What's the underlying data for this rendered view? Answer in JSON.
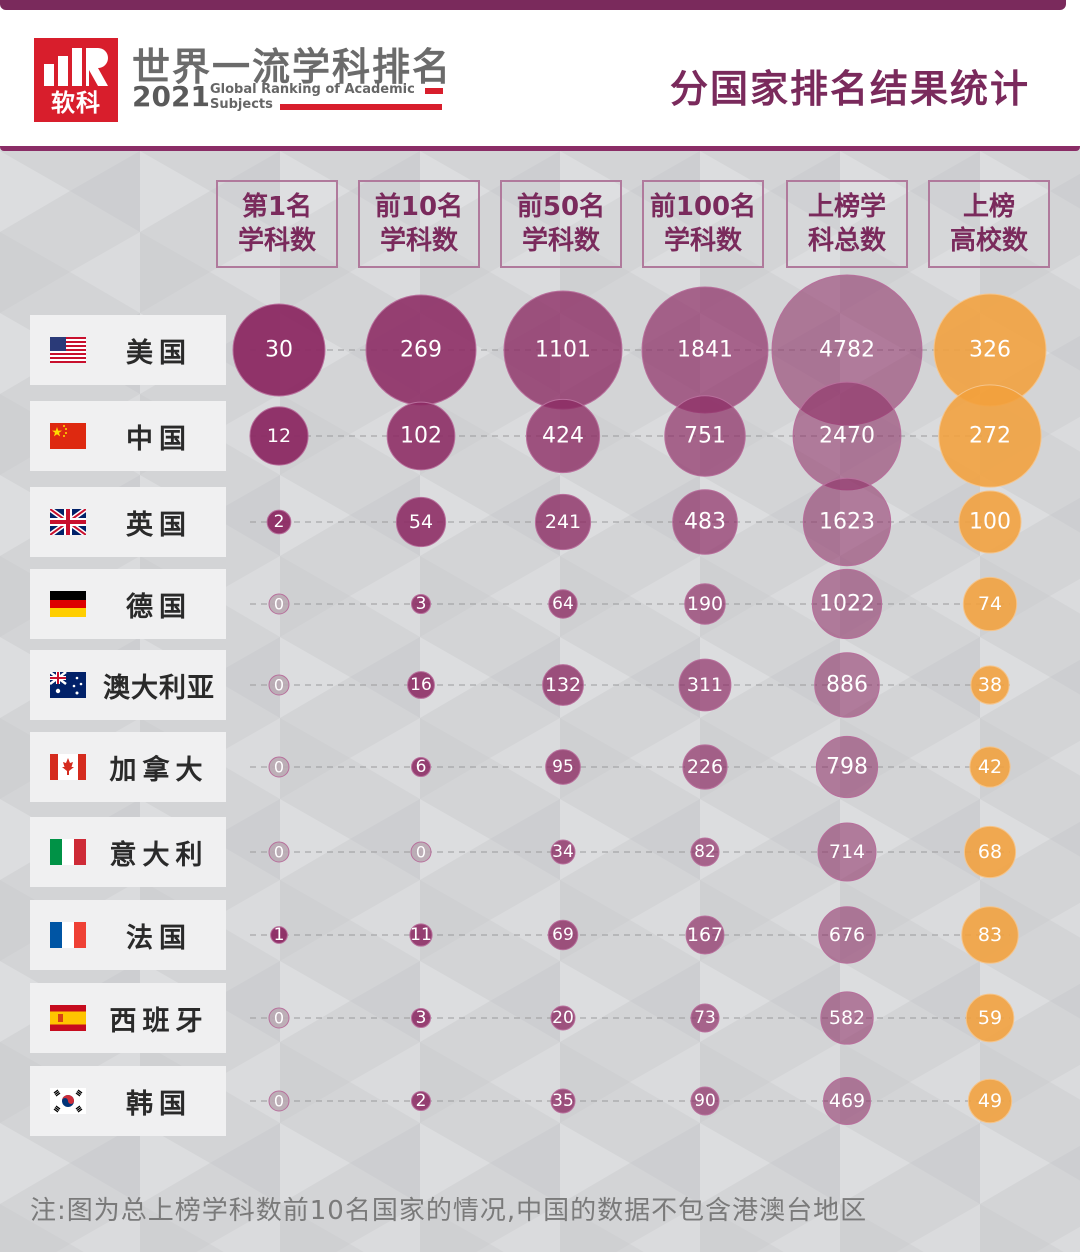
{
  "header": {
    "title_cn": "世界一流学科排名",
    "year": "2021",
    "title_en_line1": "Global Ranking of Academic",
    "title_en_line2": "Subjects",
    "logo_text": "软科",
    "right_title": "分国家排名结果统计"
  },
  "chart_data": {
    "type": "bubble-table",
    "columns": [
      {
        "line1": "第1名",
        "line2": "学科数"
      },
      {
        "line1": "前10名",
        "line2": "学科数"
      },
      {
        "line1": "前50名",
        "line2": "学科数"
      },
      {
        "line1": "前100名",
        "line2": "学科数"
      },
      {
        "line1": "上榜学",
        "line2": "科总数"
      },
      {
        "line1": "上榜",
        "line2": "高校数"
      }
    ],
    "rows": [
      {
        "country": "美国",
        "flag": "us-flag",
        "values": [
          30,
          269,
          1101,
          1841,
          4782,
          326
        ]
      },
      {
        "country": "中国",
        "flag": "cn-flag",
        "values": [
          12,
          102,
          424,
          751,
          2470,
          272
        ]
      },
      {
        "country": "英国",
        "flag": "uk-flag",
        "values": [
          2,
          54,
          241,
          483,
          1623,
          100
        ]
      },
      {
        "country": "德国",
        "flag": "de-flag",
        "values": [
          0,
          3,
          64,
          190,
          1022,
          74
        ]
      },
      {
        "country": "澳大利亚",
        "flag": "au-flag",
        "values": [
          0,
          16,
          132,
          311,
          886,
          38
        ]
      },
      {
        "country": "加拿大",
        "flag": "ca-flag",
        "values": [
          0,
          6,
          95,
          226,
          798,
          42
        ]
      },
      {
        "country": "意大利",
        "flag": "it-flag",
        "values": [
          0,
          0,
          34,
          82,
          714,
          68
        ]
      },
      {
        "country": "法国",
        "flag": "fr-flag",
        "values": [
          1,
          11,
          69,
          167,
          676,
          83
        ]
      },
      {
        "country": "西班牙",
        "flag": "es-flag",
        "values": [
          0,
          3,
          20,
          73,
          582,
          59
        ]
      },
      {
        "country": "韩国",
        "flag": "kr-flag",
        "values": [
          0,
          2,
          35,
          90,
          469,
          49
        ]
      }
    ],
    "colors": {
      "subjects": "#8c2a63",
      "universities": "#f2a03c",
      "zero": "#b9aab3"
    }
  },
  "footnote": "注:图为总上榜学科数前10名国家的情况,中国的数据不包含港澳台地区"
}
